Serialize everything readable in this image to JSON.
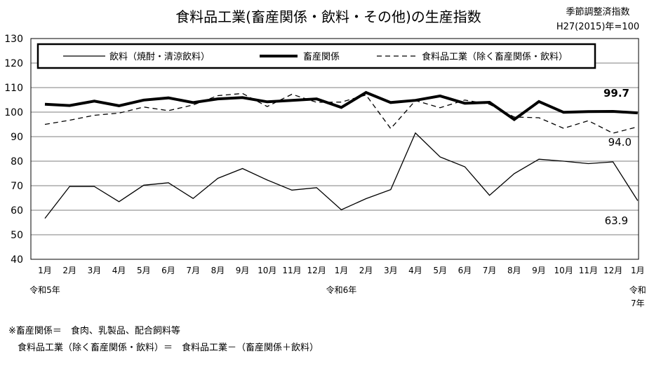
{
  "chart_data": {
    "type": "line",
    "title": "食料品工業(畜産関係・飲料・その他)の生産指数",
    "subtitle_lines": [
      "季節調整済指数",
      "H27(2015)年=100"
    ],
    "categories": [
      "1月",
      "2月",
      "3月",
      "4月",
      "5月",
      "6月",
      "7月",
      "8月",
      "9月",
      "10月",
      "11月",
      "12月",
      "1月",
      "2月",
      "3月",
      "4月",
      "5月",
      "6月",
      "7月",
      "8月",
      "9月",
      "10月",
      "11月",
      "12月",
      "1月"
    ],
    "year_labels": [
      {
        "at": 0,
        "lines": [
          "令和5年"
        ]
      },
      {
        "at": 12,
        "lines": [
          "令和6年"
        ]
      },
      {
        "at": 24,
        "lines": [
          "令和",
          "7年"
        ]
      }
    ],
    "ylim": [
      40,
      130
    ],
    "yticks": [
      40,
      50,
      60,
      70,
      80,
      90,
      100,
      110,
      120,
      130
    ],
    "grid": true,
    "legend_position": "top",
    "series": [
      {
        "name": "飲料（焼酎・清涼飲料）",
        "style": "thin",
        "values": [
          56.7,
          69.7,
          69.7,
          63.5,
          70.2,
          71.2,
          64.8,
          73.0,
          77.0,
          72.3,
          68.2,
          69.2,
          60.2,
          64.7,
          68.4,
          91.5,
          81.7,
          77.7,
          66.1,
          74.9,
          80.8,
          80.0,
          79.0,
          79.7,
          63.9
        ]
      },
      {
        "name": "畜産関係",
        "style": "thick",
        "values": [
          103.2,
          102.7,
          104.5,
          102.6,
          104.9,
          105.8,
          103.9,
          105.4,
          105.9,
          104.2,
          104.8,
          105.4,
          101.9,
          108.0,
          103.9,
          104.8,
          106.6,
          103.6,
          104.0,
          97.0,
          104.3,
          99.9,
          100.2,
          100.3,
          99.7
        ]
      },
      {
        "name": "食料品工業（除く畜産関係・飲料）",
        "style": "dashed",
        "values": [
          95.0,
          96.7,
          98.7,
          99.6,
          102.1,
          100.6,
          102.9,
          106.7,
          107.6,
          102.3,
          107.3,
          104.0,
          104.1,
          107.0,
          93.3,
          104.7,
          101.8,
          104.9,
          103.2,
          98.0,
          97.7,
          93.4,
          96.5,
          91.4,
          94.0
        ]
      }
    ],
    "annotations": [
      {
        "text": "99.7",
        "series": 1,
        "bold": true
      },
      {
        "text": "94.0",
        "series": 2
      },
      {
        "text": "63.9",
        "series": 0
      }
    ],
    "footnotes": [
      "※畜産関係＝　食肉、乳製品、配合飼料等",
      "　食料品工業（除く畜産関係・飲料）＝　食料品工業－（畜産関係＋飲料）"
    ]
  }
}
